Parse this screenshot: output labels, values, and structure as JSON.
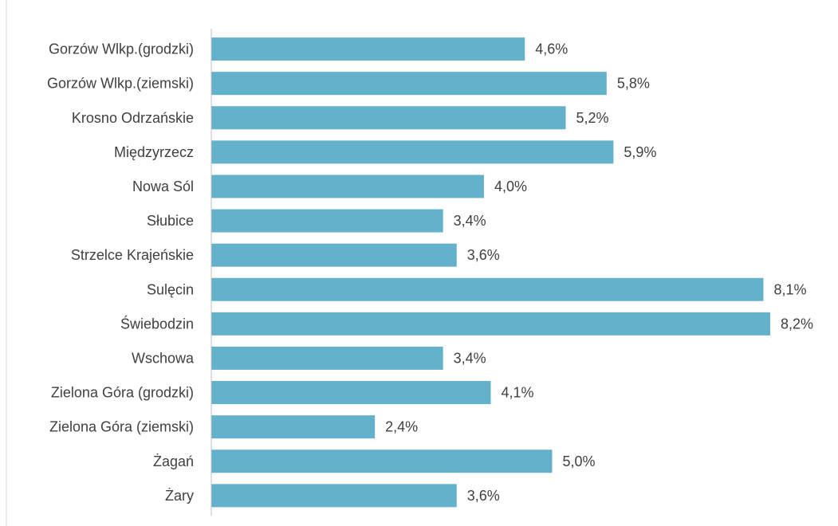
{
  "chart_data": {
    "type": "bar",
    "orientation": "horizontal",
    "title": "",
    "xlabel": "",
    "ylabel": "",
    "categories": [
      "Gorzów Wlkp.(grodzki)",
      "Gorzów Wlkp.(ziemski)",
      "Krosno Odrzańskie",
      "Międzyrzecz",
      "Nowa Sól",
      "Słubice",
      "Strzelce Krajeńskie",
      "Sulęcin",
      "Świebodzin",
      "Wschowa",
      "Zielona Góra (grodzki)",
      "Zielona Góra (ziemski)",
      "Żagań",
      "Żary"
    ],
    "values": [
      4.6,
      5.8,
      5.2,
      5.9,
      4.0,
      3.4,
      3.6,
      8.1,
      8.2,
      3.4,
      4.1,
      2.4,
      5.0,
      3.6
    ],
    "value_labels": [
      "4,6%",
      "5,8%",
      "5,2%",
      "5,9%",
      "4,0%",
      "3,4%",
      "3,6%",
      "8,1%",
      "8,2%",
      "3,4%",
      "4,1%",
      "2,4%",
      "5,0%",
      "3,6%"
    ],
    "xlim": [
      0,
      8.2
    ],
    "grid": false,
    "legend": "none",
    "bar_color": "#63b1cb"
  }
}
